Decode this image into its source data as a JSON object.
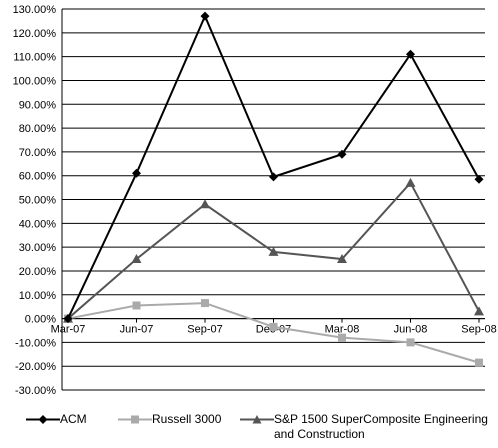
{
  "chart_data": {
    "type": "line",
    "title": "",
    "xlabel": "",
    "ylabel": "",
    "categories": [
      "Mar-07",
      "Jun-07",
      "Sep-07",
      "Dec-07",
      "Mar-08",
      "Jun-08",
      "Sep-08"
    ],
    "yticks": [
      "-30.00%",
      "-20.00%",
      "-10.00%",
      "0.00%",
      "10.00%",
      "20.00%",
      "30.00%",
      "40.00%",
      "50.00%",
      "60.00%",
      "70.00%",
      "80.00%",
      "90.00%",
      "100.00%",
      "110.00%",
      "120.00%",
      "130.00%"
    ],
    "ylim": [
      -30,
      130
    ],
    "grid": true,
    "legend_position": "bottom",
    "series": [
      {
        "name": "ACM",
        "marker": "diamond",
        "color": "#000000",
        "values": [
          0,
          61,
          127,
          59.5,
          69,
          111,
          58.5
        ]
      },
      {
        "name": "Russell 3000",
        "marker": "square",
        "color": "#aaaaaa",
        "values": [
          0,
          5.5,
          6.5,
          -3.5,
          -8,
          -10,
          -18.5
        ]
      },
      {
        "name": "S&P 1500 SuperComposite Engineering and Construction",
        "marker": "triangle",
        "color": "#555555",
        "values": [
          0,
          25,
          48,
          28,
          25,
          57,
          3
        ]
      }
    ]
  },
  "legend": {
    "acm": "ACM",
    "russell": "Russell 3000",
    "sp": "S&P 1500 SuperComposite Engineering and Construction"
  }
}
